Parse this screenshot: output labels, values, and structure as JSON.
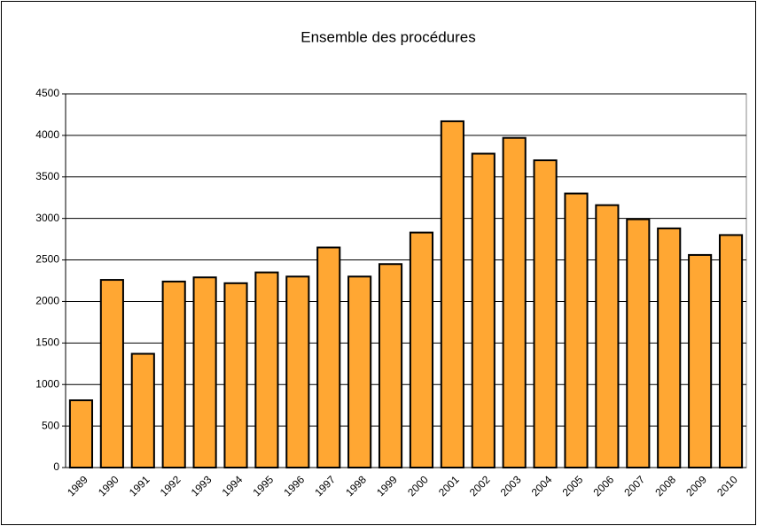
{
  "chart_data": {
    "type": "bar",
    "title": "Ensemble des procédures",
    "categories": [
      "1989",
      "1990",
      "1991",
      "1992",
      "1993",
      "1994",
      "1995",
      "1996",
      "1997",
      "1998",
      "1999",
      "2000",
      "2001",
      "2002",
      "2003",
      "2004",
      "2005",
      "2006",
      "2007",
      "2008",
      "2009",
      "2010"
    ],
    "values": [
      810,
      2260,
      1370,
      2240,
      2290,
      2220,
      2350,
      2300,
      2650,
      2300,
      2450,
      2830,
      4170,
      3780,
      3970,
      3700,
      3300,
      3160,
      2990,
      2880,
      2560,
      2800
    ],
    "color": "#ffa733",
    "ylim": [
      0,
      4500
    ],
    "yticks": [
      0,
      500,
      1000,
      1500,
      2000,
      2500,
      3000,
      3500,
      4000,
      4500
    ],
    "grid": true
  }
}
